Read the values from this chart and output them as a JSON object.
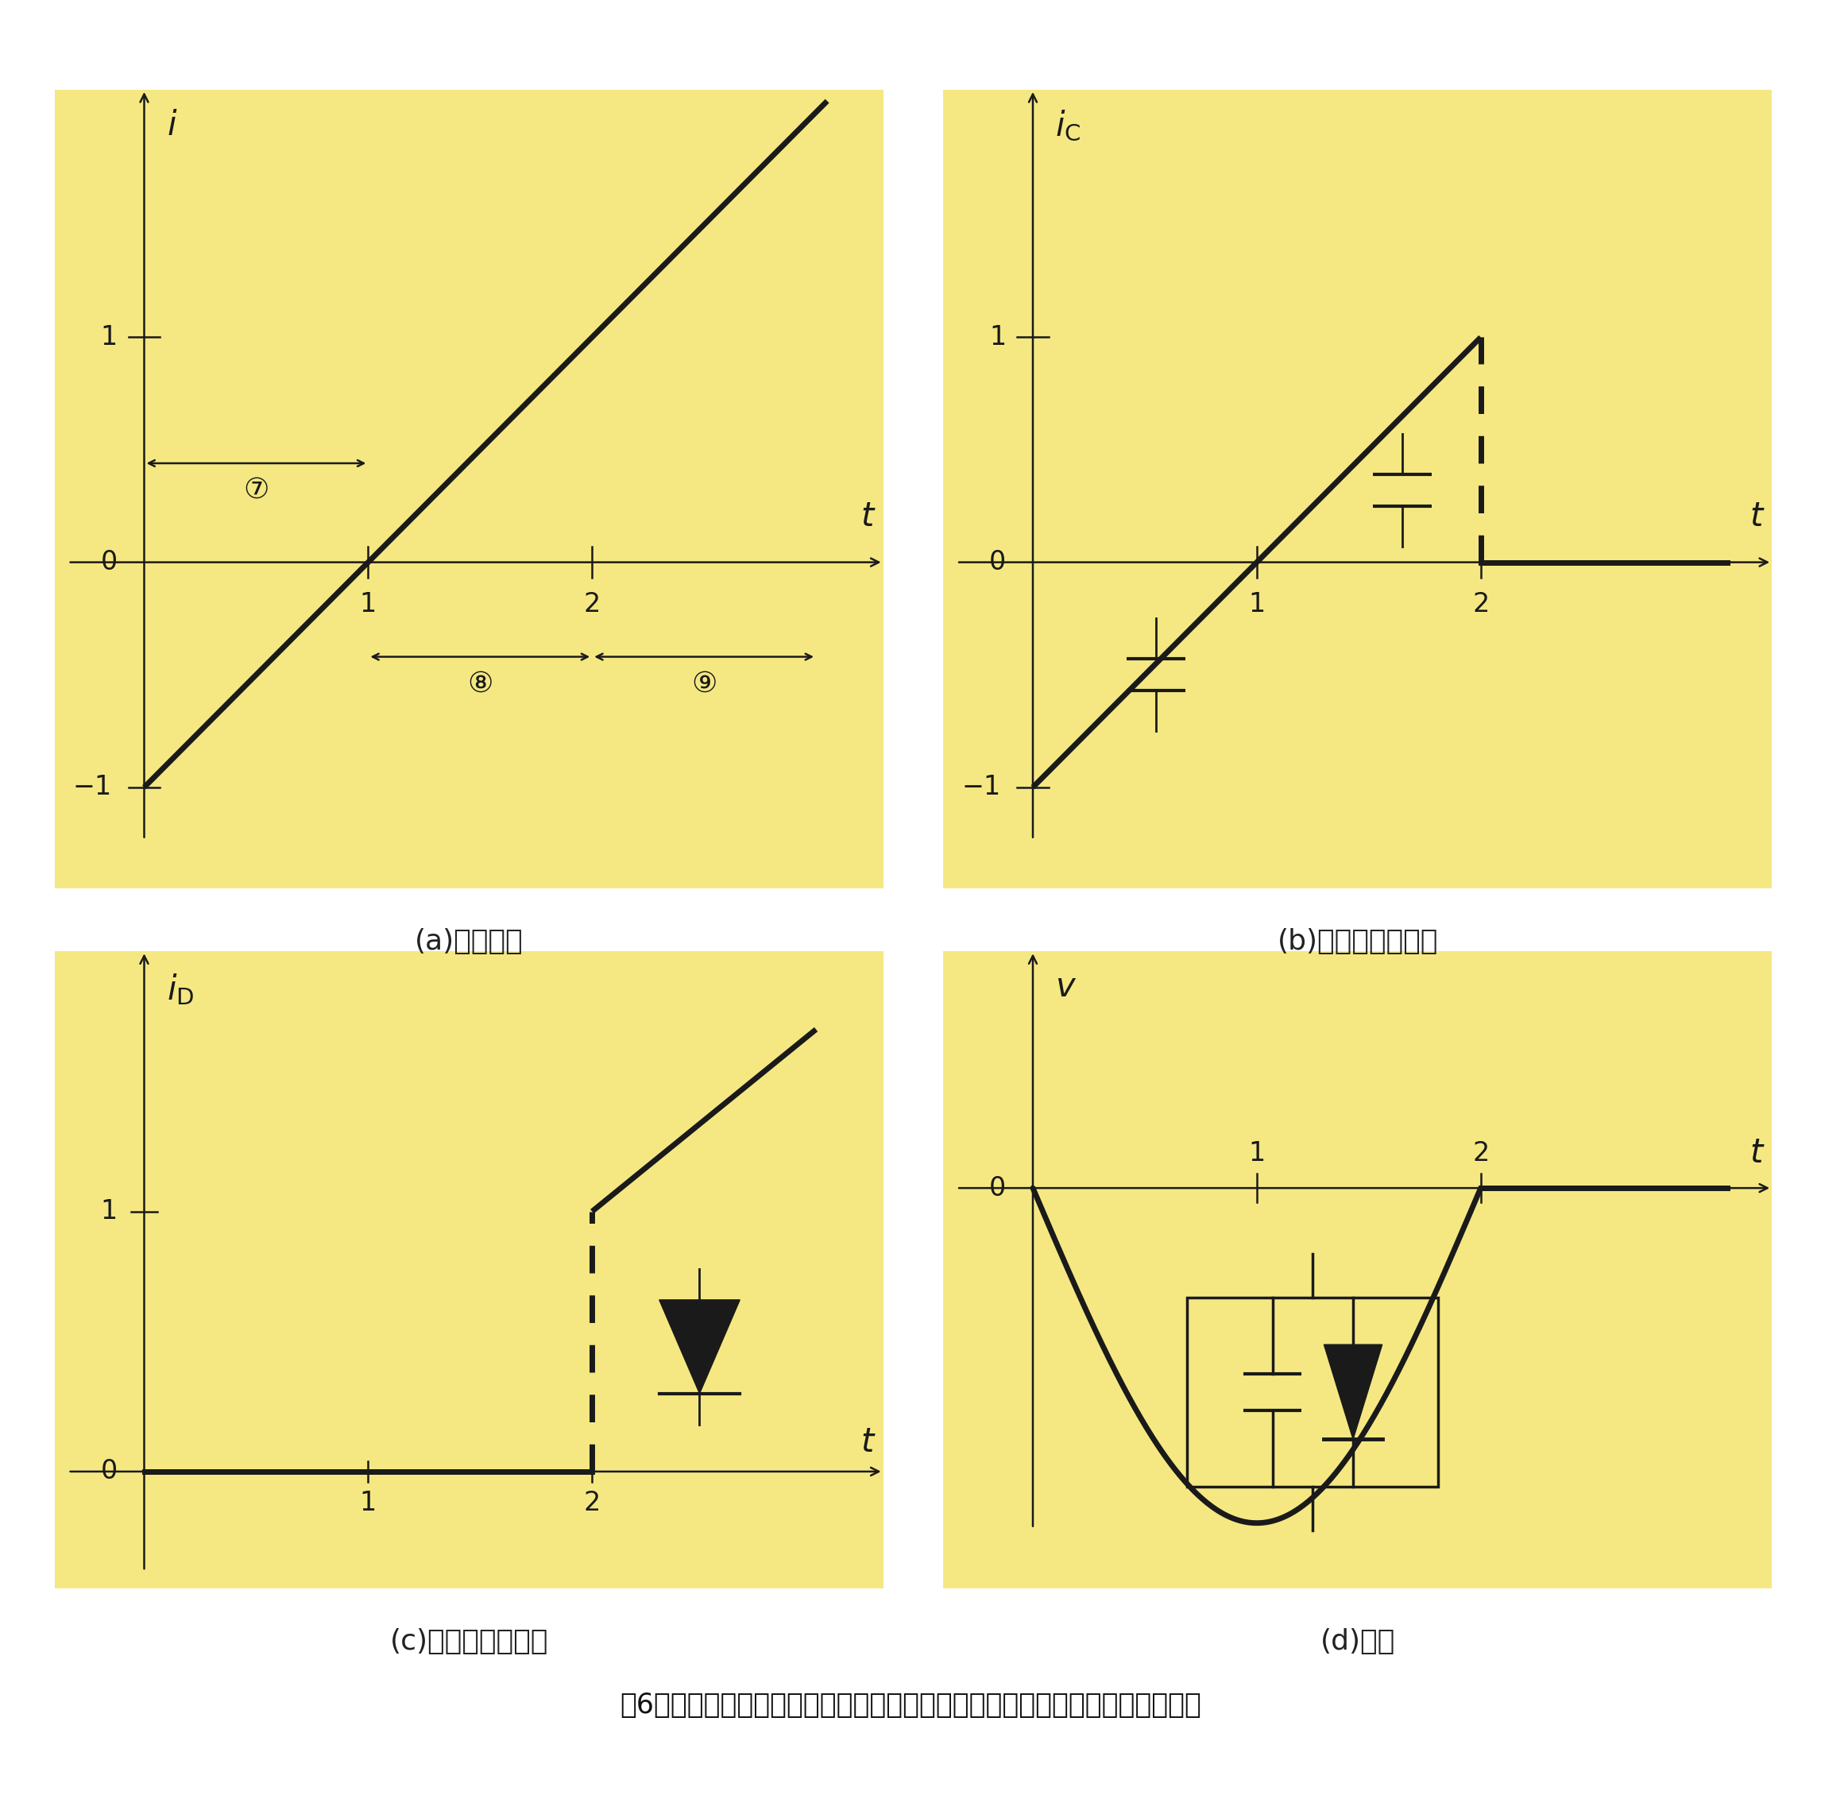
{
  "bg_color": "#F5E882",
  "line_color": "#1a1a1a",
  "fig_bg": "#ffffff",
  "title_text": "嘷6　コンデンサとダイオードの並列接続回路に直線的に上昇する電流を入力",
  "caption_a": "(a)入力電流",
  "caption_b": "(b)コンデンサ電流",
  "caption_c": "(c)ダイオード電流",
  "caption_d": "(d)電圧",
  "num6": "⑦",
  "num7": "⑧",
  "num8": "⑨"
}
